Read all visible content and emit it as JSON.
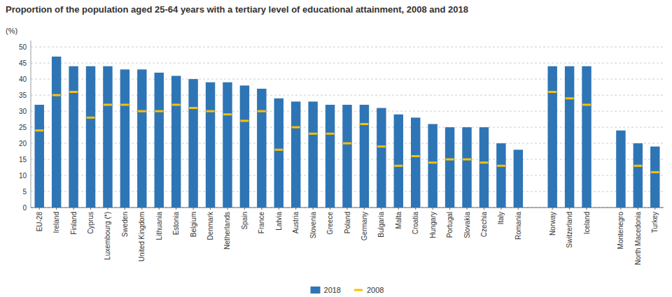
{
  "chart_data": {
    "type": "bar",
    "title": "Proportion of the population aged 25-64 years with a tertiary level of educational attainment, 2008 and 2018",
    "ylabel": "(%)",
    "categories": [
      "EU-28",
      "Ireland",
      "Finland",
      "Cyprus",
      "Luxembourg (*)",
      "Sweden",
      "United Kingdom",
      "Lithuania",
      "Estonia",
      "Belgium",
      "Denmark",
      "Netherlands",
      "Spain",
      "France",
      "Latvia",
      "Austria",
      "Slovenia",
      "Greece",
      "Poland",
      "Germany",
      "Bulgaria",
      "Malta",
      "Croatia",
      "Hungary",
      "Portugal",
      "Slovakia",
      "Czechia",
      "Italy",
      "Romania",
      null,
      "Norway",
      "Switzerland",
      "Iceland",
      null,
      "Montenegro",
      "North Macedonia",
      "Turkey"
    ],
    "series": [
      {
        "name": "2018",
        "type": "bar",
        "color": "#2e75b6",
        "values": [
          32,
          47,
          44,
          44,
          44,
          43,
          43,
          42,
          41,
          40,
          39,
          39,
          38,
          37,
          34,
          33,
          33,
          32,
          32,
          32,
          31,
          29,
          28,
          26,
          25,
          25,
          25,
          20,
          18,
          0,
          44,
          44,
          44,
          0,
          24,
          20,
          19
        ]
      },
      {
        "name": "2008",
        "type": "scatter",
        "marker": "dash",
        "color": "#ffc000",
        "values": [
          24,
          35,
          36,
          28,
          32,
          32,
          30,
          30,
          32,
          31,
          30,
          29,
          27,
          30,
          18,
          25,
          23,
          23,
          20,
          26,
          19,
          13,
          16,
          14,
          15,
          15,
          14,
          13,
          null,
          null,
          36,
          34,
          32,
          null,
          null,
          13,
          11
        ]
      }
    ],
    "ylim": [
      0,
      52
    ],
    "yticks": [
      0,
      5,
      10,
      15,
      20,
      25,
      30,
      35,
      40,
      45,
      50
    ],
    "grid": true,
    "legend": "bottom"
  }
}
